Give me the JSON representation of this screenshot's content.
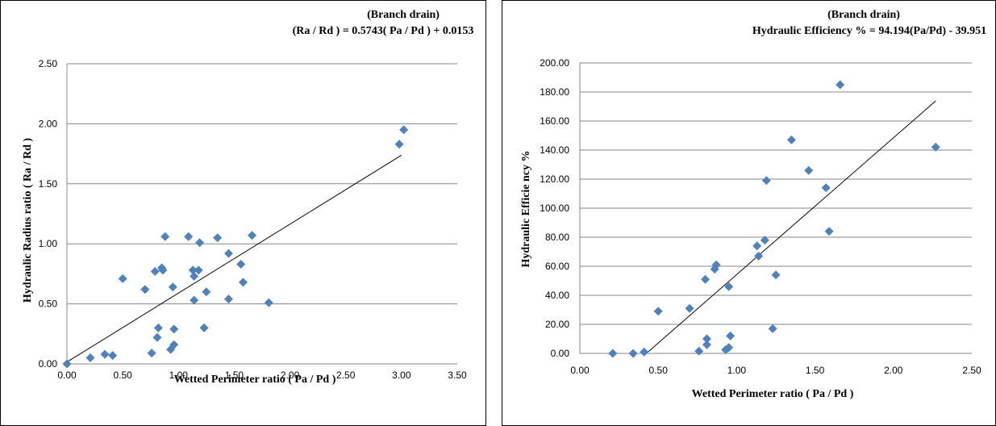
{
  "chart_data": [
    {
      "type": "scatter",
      "title": "(Branch drain)",
      "subtitle": "(Ra / Rd ) = 0.5743( Pa / Pd ) + 0.0153",
      "xlabel": "Wetted Perimeter ratio  ( Pa / Pd )",
      "ylabel": "Hydraulic Radius ratio ( Ra / Rd )",
      "xlim": [
        0,
        3.5
      ],
      "ylim": [
        0,
        2.5
      ],
      "xticks": [
        0,
        0.5,
        1.0,
        1.5,
        2.0,
        2.5,
        3.0,
        3.5
      ],
      "yticks": [
        0,
        0.5,
        1.0,
        1.5,
        2.0,
        2.5
      ],
      "xtick_labels": [
        "0.00",
        "0.50",
        "1.00",
        "1.50",
        "2.00",
        "2.50",
        "3.00",
        "3.50"
      ],
      "ytick_labels": [
        "0.00",
        "0.50",
        "1.00",
        "1.50",
        "2.00",
        "2.50"
      ],
      "grid": "horizontal",
      "marker_color": "#4F81BD",
      "trendline": {
        "slope": 0.5743,
        "intercept": 0.0153,
        "x_range": [
          0,
          3.0
        ]
      },
      "points": [
        [
          0.0,
          0.0
        ],
        [
          0.21,
          0.05
        ],
        [
          0.34,
          0.08
        ],
        [
          0.41,
          0.07
        ],
        [
          0.5,
          0.71
        ],
        [
          0.7,
          0.62
        ],
        [
          0.76,
          0.09
        ],
        [
          0.79,
          0.77
        ],
        [
          0.81,
          0.22
        ],
        [
          0.82,
          0.3
        ],
        [
          0.85,
          0.8
        ],
        [
          0.86,
          0.78
        ],
        [
          0.88,
          1.06
        ],
        [
          0.93,
          0.12
        ],
        [
          0.95,
          0.64
        ],
        [
          0.96,
          0.16
        ],
        [
          0.96,
          0.29
        ],
        [
          1.09,
          1.06
        ],
        [
          1.13,
          0.78
        ],
        [
          1.14,
          0.53
        ],
        [
          1.14,
          0.73
        ],
        [
          1.18,
          0.78
        ],
        [
          1.19,
          1.01
        ],
        [
          1.23,
          0.3
        ],
        [
          1.25,
          0.6
        ],
        [
          1.35,
          1.05
        ],
        [
          1.45,
          0.92
        ],
        [
          1.45,
          0.54
        ],
        [
          1.56,
          0.83
        ],
        [
          1.58,
          0.68
        ],
        [
          1.66,
          1.07
        ],
        [
          1.81,
          0.51
        ],
        [
          2.98,
          1.83
        ],
        [
          3.02,
          1.95
        ]
      ]
    },
    {
      "type": "scatter",
      "title": "(Branch drain)",
      "subtitle": "Hydraulic Efficiency % = 94.194(Pa/Pd)  - 39.951",
      "xlabel": "Wetted Perimeter ratio  ( Pa / Pd )",
      "ylabel": "Hydraulic Efficie ncy %",
      "xlim": [
        0,
        2.5
      ],
      "ylim": [
        0,
        200
      ],
      "xticks": [
        0,
        0.5,
        1.0,
        1.5,
        2.0,
        2.5
      ],
      "yticks": [
        0,
        20,
        40,
        60,
        80,
        100,
        120,
        140,
        160,
        180,
        200
      ],
      "xtick_labels": [
        "0.00",
        "0.50",
        "1.00",
        "1.50",
        "2.00",
        "2.50"
      ],
      "ytick_labels": [
        "0.00",
        "20.00",
        "40.00",
        "60.00",
        "80.00",
        "100.00",
        "120.00",
        "140.00",
        "160.00",
        "180.00",
        "200.00"
      ],
      "grid": "horizontal",
      "marker_color": "#4F81BD",
      "trendline": {
        "slope": 94.194,
        "intercept": -39.951,
        "x_range": [
          0.43,
          2.27
        ]
      },
      "points": [
        [
          0.21,
          0.0
        ],
        [
          0.34,
          0.0
        ],
        [
          0.41,
          1.0
        ],
        [
          0.5,
          29.0
        ],
        [
          0.7,
          31.0
        ],
        [
          0.76,
          1.5
        ],
        [
          0.8,
          51.0
        ],
        [
          0.81,
          6.0
        ],
        [
          0.81,
          10.0
        ],
        [
          0.86,
          58.0
        ],
        [
          0.87,
          61.0
        ],
        [
          0.93,
          2.5
        ],
        [
          0.95,
          4.0
        ],
        [
          0.95,
          46.0
        ],
        [
          0.96,
          12.0
        ],
        [
          1.13,
          74.0
        ],
        [
          1.14,
          67.0
        ],
        [
          1.18,
          78.0
        ],
        [
          1.19,
          119.0
        ],
        [
          1.23,
          17.0
        ],
        [
          1.25,
          54.0
        ],
        [
          1.35,
          147.0
        ],
        [
          1.46,
          126.0
        ],
        [
          1.57,
          114.0
        ],
        [
          1.59,
          84.0
        ],
        [
          1.66,
          185.0
        ],
        [
          2.27,
          142.0
        ]
      ]
    }
  ]
}
